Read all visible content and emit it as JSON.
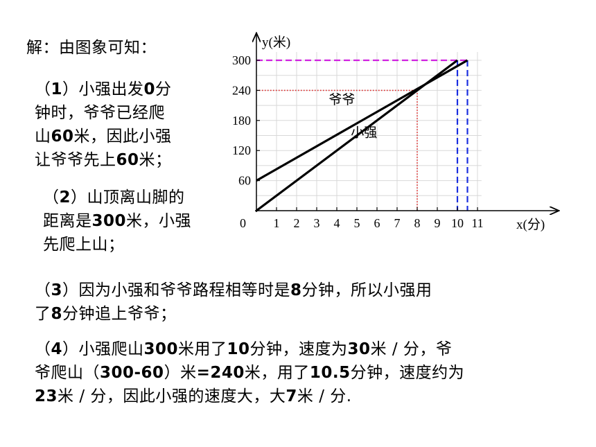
{
  "solution": {
    "heading": "解：由图象可知：",
    "p1": {
      "lines": [
        [
          [
            "（",
            false
          ],
          [
            "1",
            true
          ],
          [
            "）小强出发",
            false
          ],
          [
            "0",
            true
          ],
          [
            "分",
            false
          ]
        ],
        [
          [
            "钟时，爷爷已经爬",
            false
          ]
        ],
        [
          [
            "山",
            false
          ],
          [
            "60",
            true
          ],
          [
            "米，因此小强",
            false
          ]
        ],
        [
          [
            "让爷爷先上",
            false
          ],
          [
            "60",
            true
          ],
          [
            "米；",
            false
          ]
        ]
      ]
    },
    "p2": {
      "lines": [
        [
          [
            "（",
            false
          ],
          [
            "2",
            true
          ],
          [
            "）山顶离山脚的",
            false
          ]
        ],
        [
          [
            "距离是",
            false
          ],
          [
            "300",
            true
          ],
          [
            "米，小强",
            false
          ]
        ],
        [
          [
            "先爬上山；",
            false
          ]
        ]
      ]
    },
    "p3": {
      "lines": [
        [
          [
            "（",
            false
          ],
          [
            "3",
            true
          ],
          [
            "）因为小强和爷爷路程相等时是",
            false
          ],
          [
            "8",
            true
          ],
          [
            "分钟，所以小强用",
            false
          ]
        ],
        [
          [
            "了",
            false
          ],
          [
            "8",
            true
          ],
          [
            "分钟追上爷爷；",
            false
          ]
        ]
      ]
    },
    "p4": {
      "lines": [
        [
          [
            "（",
            false
          ],
          [
            "4",
            true
          ],
          [
            "）小强爬山",
            false
          ],
          [
            "300",
            true
          ],
          [
            "米用了",
            false
          ],
          [
            "10",
            true
          ],
          [
            "分钟，速度为",
            false
          ],
          [
            "30",
            true
          ],
          [
            "米 / 分，爷",
            false
          ]
        ],
        [
          [
            "爷爬山（",
            false
          ],
          [
            "300-60",
            true
          ],
          [
            "）米",
            false
          ],
          [
            "=240",
            true
          ],
          [
            "米，用了",
            false
          ],
          [
            "10.5",
            true
          ],
          [
            "分钟，速度约为",
            false
          ]
        ],
        [
          [
            "23",
            true
          ],
          [
            "米 / 分，因此小强的速度大，大",
            false
          ],
          [
            "7",
            true
          ],
          [
            "米 / 分.",
            false
          ]
        ]
      ]
    }
  },
  "chart_data": {
    "type": "line",
    "xlabel": "x(分)",
    "ylabel": "y(米)",
    "origin_label": "0",
    "x_ticks": [
      "1",
      "2",
      "3",
      "4",
      "5",
      "6",
      "7",
      "8",
      "9",
      "10",
      "11"
    ],
    "y_ticks": [
      "60",
      "120",
      "180",
      "240",
      "300"
    ],
    "xlim": [
      0,
      11.2
    ],
    "ylim": [
      0,
      300
    ],
    "series": [
      {
        "name": "爷爷",
        "points": [
          [
            0,
            60
          ],
          [
            10.5,
            300
          ]
        ],
        "color": "#000000"
      },
      {
        "name": "小强",
        "points": [
          [
            0,
            0
          ],
          [
            10,
            300
          ]
        ],
        "color": "#000000"
      }
    ],
    "guides": [
      {
        "kind": "dotted",
        "color": "#e02020",
        "points": [
          [
            0,
            240
          ],
          [
            8,
            240
          ],
          [
            8,
            0
          ]
        ]
      },
      {
        "kind": "dashed",
        "color": "#d020e0",
        "points": [
          [
            0,
            300
          ],
          [
            10.5,
            300
          ]
        ]
      },
      {
        "kind": "dashed",
        "color": "#1a2ee0",
        "points": [
          [
            10,
            300
          ],
          [
            10,
            0
          ]
        ]
      },
      {
        "kind": "dashed",
        "color": "#1a2ee0",
        "points": [
          [
            10.5,
            300
          ],
          [
            10.5,
            0
          ]
        ]
      }
    ],
    "grid": true
  }
}
